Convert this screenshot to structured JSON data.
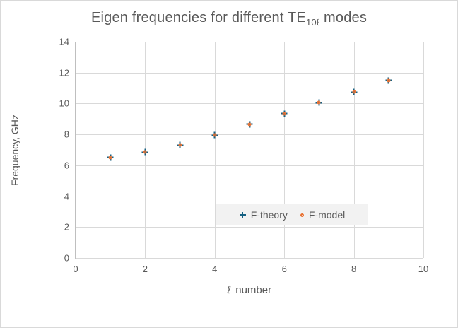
{
  "chart_data": {
    "type": "scatter",
    "title": {
      "prefix": "Eigen frequencies for different TE",
      "subscript": "10ℓ",
      "suffix": " modes"
    },
    "xlabel": {
      "symbol": "ℓ",
      "text": " number"
    },
    "ylabel": "Frequency, GHz",
    "xlim": [
      0,
      10
    ],
    "ylim": [
      0,
      14
    ],
    "x_ticks": [
      0,
      2,
      4,
      6,
      8,
      10
    ],
    "y_ticks": [
      0,
      2,
      4,
      6,
      8,
      10,
      12,
      14
    ],
    "grid": true,
    "legend_position": "inside-bottom-center",
    "x": [
      1,
      2,
      3,
      4,
      5,
      6,
      7,
      8,
      9
    ],
    "series": [
      {
        "name": "F-theory",
        "marker": "plus",
        "color": "#156082",
        "values": [
          6.5,
          6.85,
          7.3,
          7.95,
          8.65,
          9.35,
          10.05,
          10.75,
          11.5
        ]
      },
      {
        "name": "F-model",
        "marker": "circle",
        "color": "#E97132",
        "values": [
          6.5,
          6.85,
          7.3,
          7.95,
          8.65,
          9.35,
          10.05,
          10.75,
          11.5
        ]
      }
    ],
    "colors": {
      "gridline": "#D9D9D9",
      "axis_line": "#BFBFBF",
      "tick_label": "#595959",
      "title_text": "#595959",
      "legend_bg": "#F2F2F2",
      "legend_text": "#595959",
      "frame_border": "#D9D9D9",
      "background": "#FFFFFF"
    }
  }
}
